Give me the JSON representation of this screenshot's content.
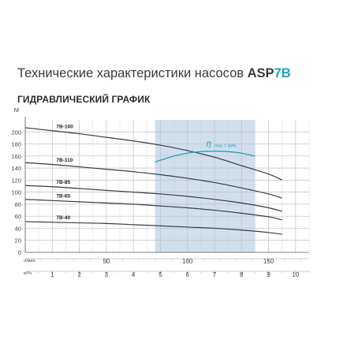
{
  "header": {
    "title_main": "Технические характеристики насосов ",
    "title_model": "ASP",
    "title_model_suffix": "7B",
    "subtitle": "ГИДРАВЛИЧЕСКИЙ ГРАФИК"
  },
  "colors": {
    "curve": "#3a3a4a",
    "efficiency": "#1da3b8",
    "highlight": "#c9d9ea",
    "grid": "#bfbfbf"
  },
  "chart_data": {
    "type": "line",
    "title": "ГИДРАВЛИЧЕСКИЙ ГРАФИК",
    "ylabel": "M",
    "xlabel_primary": "л/мин",
    "xlabel_secondary": "м³/ч",
    "ylim": [
      0,
      220
    ],
    "yticks": [
      0,
      20,
      40,
      60,
      80,
      100,
      120,
      140,
      160,
      180,
      200
    ],
    "xlim_m3h": [
      0,
      10.5
    ],
    "xticks_m3h": [
      1,
      2,
      3,
      4,
      5,
      6,
      7,
      8,
      9,
      10
    ],
    "xticks_lmin": [
      50,
      100,
      150
    ],
    "grid": true,
    "highlight_range_m3h": [
      4.8,
      8.5
    ],
    "series": [
      {
        "name": "7B-160",
        "x": [
          0,
          1,
          2,
          3,
          4,
          5,
          6,
          7,
          8,
          9,
          9.5
        ],
        "y": [
          207,
          202,
          197,
          191,
          185,
          178,
          169,
          158,
          144,
          130,
          120
        ]
      },
      {
        "name": "7B-110",
        "x": [
          0,
          1,
          2,
          3,
          4,
          5,
          6,
          7,
          8,
          9,
          9.5
        ],
        "y": [
          149,
          146,
          142,
          138,
          134,
          129,
          123,
          116,
          107,
          97,
          90
        ]
      },
      {
        "name": "7B-85",
        "x": [
          0,
          1,
          2,
          3,
          4,
          5,
          6,
          7,
          8,
          9,
          9.5
        ],
        "y": [
          111,
          109,
          106,
          103,
          100,
          97,
          93,
          88,
          82,
          74,
          68
        ]
      },
      {
        "name": "7B-65",
        "x": [
          0,
          1,
          2,
          3,
          4,
          5,
          6,
          7,
          8,
          9,
          9.5
        ],
        "y": [
          88,
          86,
          84,
          82,
          80,
          77,
          74,
          70,
          65,
          59,
          54
        ]
      },
      {
        "name": "7B-40",
        "x": [
          0,
          1,
          2,
          3,
          4,
          5,
          6,
          7,
          8,
          9,
          9.5
        ],
        "y": [
          51,
          50,
          49,
          48,
          46,
          44,
          42,
          40,
          37,
          33,
          30
        ]
      }
    ],
    "efficiency_curve": {
      "label": "η",
      "label_suffix": "max = 48%",
      "x": [
        4.8,
        5.5,
        6.2,
        7.0,
        7.8,
        8.5
      ],
      "y": [
        150,
        160,
        166,
        168,
        166,
        160
      ]
    }
  }
}
